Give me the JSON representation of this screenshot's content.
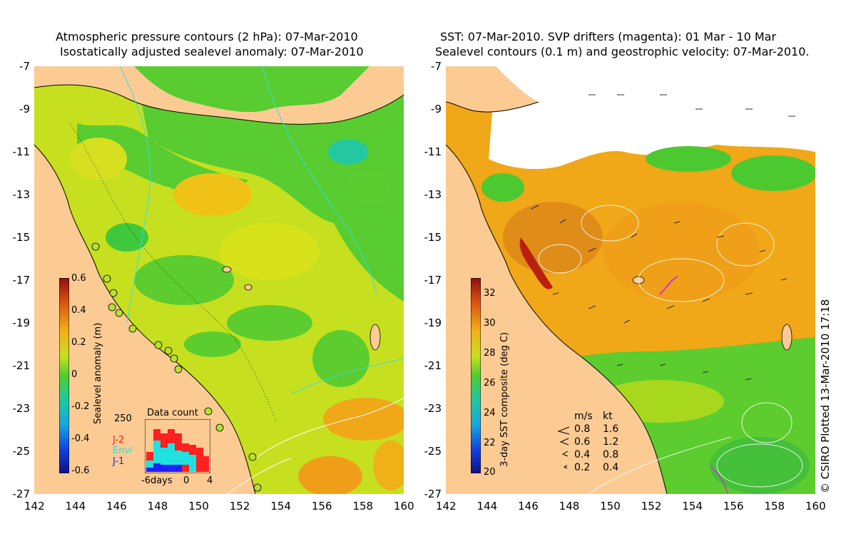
{
  "left_panel": {
    "title_line1": "Atmospheric pressure contours (2 hPa): 07-Mar-2010",
    "title_line2": "Isostatically adjusted sealevel anomaly: 07-Mar-2010",
    "colorbar": {
      "label": "Sealevel anomaly (m)",
      "ticks": [
        "0.6",
        "0.4",
        "0.2",
        "0",
        "-0.2",
        "-0.4",
        "-0.6"
      ]
    },
    "data_count": {
      "title": "Data count",
      "max_label": "250",
      "legend": [
        "J-2",
        "Envi",
        "J-1"
      ],
      "legend_colors": [
        "#ff2020",
        "#20e0e0",
        "#2020ff"
      ],
      "xlabels": [
        "-6days",
        "0",
        "4"
      ]
    }
  },
  "right_panel": {
    "title_line1": "SST: 07-Mar-2010. SVP drifters (magenta): 01 Mar - 10 Mar",
    "title_line2": "Sealevel contours (0.1 m) and geostrophic velocity: 07-Mar-2010.",
    "colorbar": {
      "label": "3-day SST composite (deg C)",
      "ticks": [
        "32",
        "30",
        "28",
        "26",
        "24",
        "22",
        "20"
      ]
    },
    "velocity_legend": {
      "header_ms": "m/s",
      "header_kt": "kt",
      "rows": [
        {
          "ms": "0.8",
          "kt": "1.6"
        },
        {
          "ms": "0.6",
          "kt": "1.2"
        },
        {
          "ms": "0.4",
          "kt": "0.8"
        },
        {
          "ms": "0.2",
          "kt": "0.4"
        }
      ]
    }
  },
  "axes": {
    "lat_labels": [
      "-7",
      "-9",
      "-11",
      "-13",
      "-15",
      "-17",
      "-19",
      "-21",
      "-23",
      "-25",
      "-27"
    ],
    "lon_labels": [
      "142",
      "144",
      "146",
      "148",
      "150",
      "152",
      "154",
      "156",
      "158",
      "160"
    ]
  },
  "credit": "© CSIRO Plotted 13-Mar-2010 17:18",
  "colors": {
    "land": "#fccb94",
    "ocean_green": "#4ccf2c",
    "ocean_yellow": "#d8e21a",
    "ocean_orange": "#f0a818",
    "cloud": "#ffffff"
  }
}
